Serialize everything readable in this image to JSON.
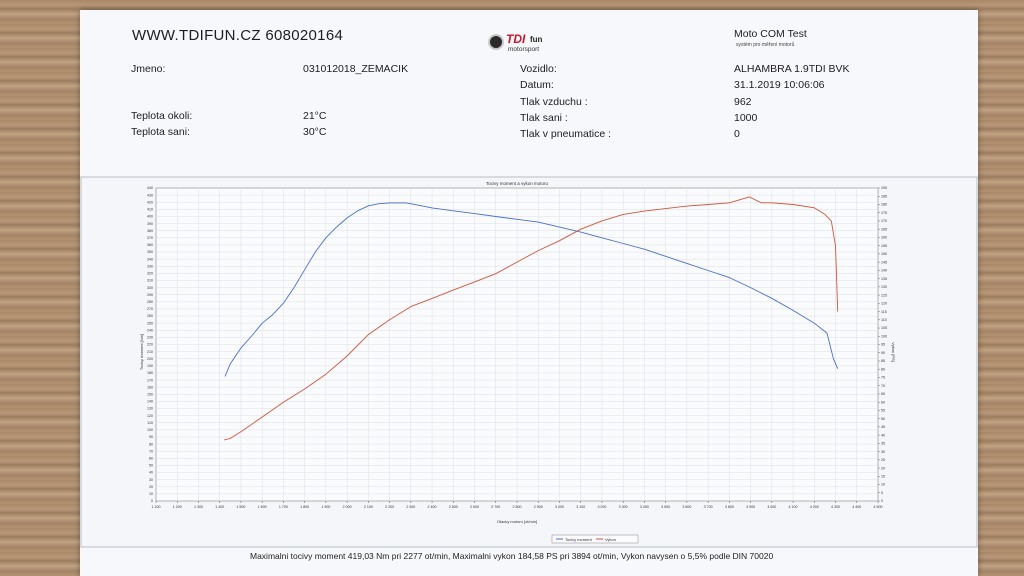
{
  "header": {
    "website": "WWW.TDIFUN.CZ 608020164",
    "logo": {
      "brand_main": "TDI",
      "brand_sub": "fun",
      "tagline": "motorsport"
    },
    "test_title": "Moto COM Test",
    "test_subtitle": "systém pro měření motorů"
  },
  "info": {
    "jmeno_label": "Jmeno:",
    "jmeno_value": "031012018_ZEMACIK",
    "teplota_okoli_label": "Teplota okoli:",
    "teplota_okoli_value": "21°C",
    "teplota_sani_label": "Teplota sani:",
    "teplota_sani_value": "30°C",
    "vozidlo_label": "Vozidlo:",
    "vozidlo_value": "ALHAMBRA 1.9TDI BVK",
    "datum_label": "Datum:",
    "datum_value": "31.1.2019 10:06:06",
    "tlak_vzduchu_label": "Tlak vzduchu :",
    "tlak_vzduchu_value": "962",
    "tlak_sani_label": "Tlak sani :",
    "tlak_sani_value": "1000",
    "tlak_pneu_label": "Tlak v pneumatice :",
    "tlak_pneu_value": "0"
  },
  "chart_data": {
    "type": "line",
    "title": "Tocivy moment a vykon motoru",
    "xlabel": "Otacky motoru [ot/min]",
    "ylabel_left": "Tocivy moment [Nm]",
    "ylabel_right": "Vykon [PS]",
    "xlim": [
      1100,
      4500
    ],
    "ylim_left": [
      0,
      440
    ],
    "ylim_right": [
      0,
      190
    ],
    "grid": true,
    "legend_position": "bottom-center",
    "x_ticks": [
      "1 100",
      "1 200",
      "1 300",
      "1 400",
      "1 500",
      "1 600",
      "1 700",
      "1 800",
      "1 900",
      "2 000",
      "2 100",
      "2 200",
      "2 300",
      "2 400",
      "2 500",
      "2 600",
      "2 700",
      "2 800",
      "2 900",
      "3 000",
      "3 100",
      "3 200",
      "3 300",
      "3 400",
      "3 500",
      "3 600",
      "3 700",
      "3 800",
      "3 900",
      "4 000",
      "4 100",
      "4 200",
      "4 300",
      "4 400",
      "4 500"
    ],
    "series": [
      {
        "name": "Tocivy moment",
        "axis": "left",
        "color": "#4a6fd0",
        "x": [
          1425,
          1450,
          1500,
          1550,
          1600,
          1650,
          1700,
          1750,
          1800,
          1850,
          1900,
          1950,
          2000,
          2050,
          2100,
          2150,
          2200,
          2250,
          2277,
          2300,
          2350,
          2400,
          2500,
          2600,
          2700,
          2800,
          2900,
          3000,
          3100,
          3200,
          3300,
          3400,
          3500,
          3600,
          3700,
          3800,
          3900,
          4000,
          4100,
          4200,
          4260,
          4290,
          4310
        ],
        "values": [
          175,
          193,
          215,
          232,
          250,
          262,
          278,
          300,
          325,
          350,
          370,
          385,
          398,
          408,
          415,
          418,
          419,
          419,
          419.03,
          418,
          415,
          412,
          408,
          404,
          400,
          396,
          392,
          385,
          378,
          370,
          362,
          354,
          344,
          334,
          324,
          314,
          300,
          285,
          268,
          250,
          236,
          200,
          186
        ]
      },
      {
        "name": "Vykon",
        "axis": "right",
        "color": "#d2553d",
        "x": [
          1420,
          1450,
          1500,
          1600,
          1700,
          1800,
          1900,
          2000,
          2100,
          2200,
          2300,
          2400,
          2500,
          2600,
          2700,
          2800,
          2900,
          3000,
          3100,
          3200,
          3300,
          3400,
          3500,
          3600,
          3700,
          3800,
          3894,
          3950,
          4000,
          4100,
          4200,
          4250,
          4280,
          4300,
          4310
        ],
        "values": [
          37,
          38,
          42,
          51,
          60,
          68,
          77,
          88,
          101,
          110,
          118,
          123,
          128,
          133,
          138,
          145,
          152,
          158,
          165,
          170,
          174,
          176,
          177.5,
          179,
          180,
          181,
          184.58,
          181,
          181,
          180,
          178,
          174,
          170,
          155,
          115
        ]
      }
    ]
  },
  "footer": {
    "summary": "Maximalni tocivy moment 419,03 Nm pri 2277 ot/min,  Maximalni vykon 184,58 PS pri 3894 ot/min,  Vykon navysen o 5,5% podle DIN 70020"
  }
}
